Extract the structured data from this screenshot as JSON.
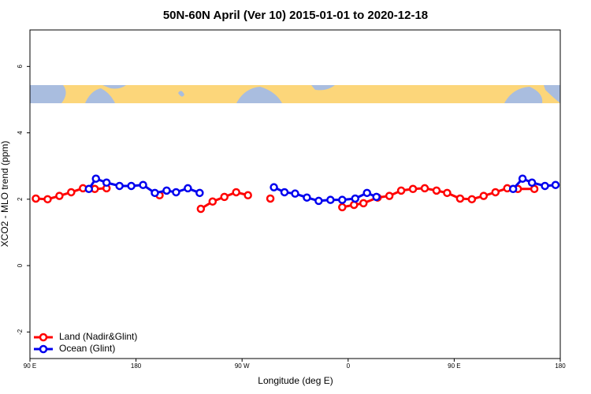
{
  "chart_data": {
    "type": "line",
    "title": "50N-60N April (Ver 10)   2015-01-01 to 2020-12-18",
    "x_label": "Longitude (deg E)",
    "y_label": "XCO2 - MLO trend (ppm)",
    "xlim": [
      90,
      540
    ],
    "ylim": [
      -2.8,
      7.1
    ],
    "xticks": [
      {
        "value": 90,
        "label": "90 E"
      },
      180,
      {
        "value": 270,
        "label": "90 W"
      },
      {
        "value": 360,
        "label": "0"
      },
      {
        "value": 450,
        "label": "90 E"
      },
      {
        "value": 540,
        "label": "180"
      }
    ],
    "yticks": [
      -2,
      0,
      2,
      4,
      6
    ],
    "legend": "bottom-left",
    "series": [
      {
        "name": "Land (Nadir&Glint)",
        "color": "#ff0000",
        "x": [
          95,
          105,
          115,
          125,
          135,
          145,
          155,
          175,
          200,
          210,
          235,
          245,
          255,
          265,
          275,
          280,
          294,
          320,
          355,
          365,
          373,
          385,
          395,
          405,
          415,
          425,
          435,
          444,
          455,
          465,
          475,
          485,
          495,
          504,
          518
        ],
        "values": [
          2.02,
          2.0,
          2.1,
          2.21,
          2.33,
          2.31,
          2.33,
          null,
          2.12,
          null,
          1.71,
          1.93,
          2.07,
          2.21,
          2.12,
          null,
          2.02,
          null,
          1.76,
          1.83,
          1.88,
          2.05,
          2.1,
          2.26,
          2.31,
          2.33,
          2.26,
          2.19,
          2.02,
          2.0,
          2.1,
          2.21,
          2.33,
          2.31,
          2.31
        ]
      },
      {
        "name": "Ocean (Glint)",
        "color": "#0000ee",
        "x": [
          140,
          146,
          155,
          166,
          176,
          186,
          196,
          206,
          214,
          224,
          234,
          260,
          297,
          306,
          315,
          325,
          335,
          345,
          355,
          366,
          376,
          384,
          450,
          500,
          508,
          516,
          527,
          536
        ],
        "values": [
          2.31,
          2.62,
          2.5,
          2.4,
          2.4,
          2.43,
          2.19,
          2.26,
          2.21,
          2.33,
          2.19,
          null,
          2.36,
          2.21,
          2.17,
          2.05,
          1.95,
          1.98,
          1.98,
          2.02,
          2.19,
          2.07,
          null,
          2.31,
          2.62,
          2.5,
          2.4,
          2.43
        ]
      }
    ]
  }
}
